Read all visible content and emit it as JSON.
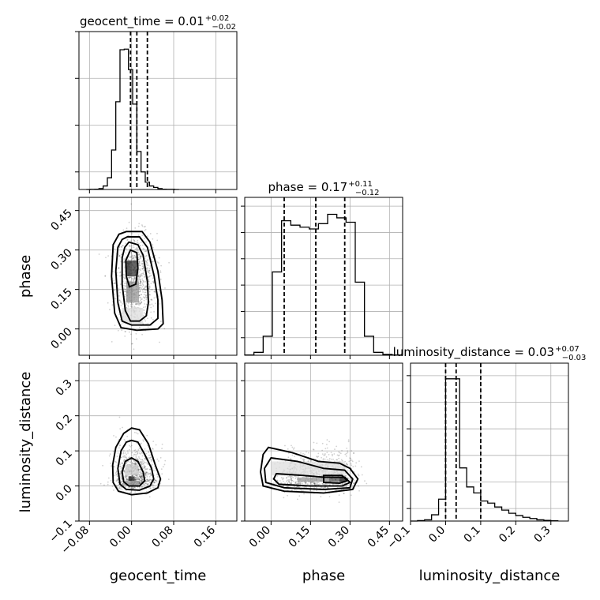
{
  "chart_data": {
    "type": "corner",
    "parameters": [
      {
        "name": "geocent_time",
        "axis_label": "geocent_time",
        "range": [
          -0.1,
          0.2
        ],
        "ticks": [
          -0.08,
          0.0,
          0.08,
          0.16
        ],
        "tick_labels": [
          "−0.08",
          "0.00",
          "0.08",
          "0.16"
        ],
        "median": 0.01,
        "quantiles": [
          -0.002,
          0.01,
          0.03
        ],
        "title": {
          "main": "geocent_time = 0.01",
          "sup": "+0.02",
          "sub": "−0.02"
        },
        "hist": {
          "bins": [
            -0.086,
            -0.078,
            -0.07,
            -0.062,
            -0.054,
            -0.046,
            -0.038,
            -0.03,
            -0.022,
            -0.014,
            -0.006,
            0.002,
            0.01,
            0.018,
            0.026,
            0.034,
            0.042,
            0.05,
            0.058,
            0.066,
            0.074,
            0.082,
            0.09
          ],
          "counts": [
            0,
            0.5,
            1,
            3,
            12,
            40,
            135,
            300,
            478,
            480,
            410,
            292,
            130,
            60,
            25,
            12,
            7,
            3,
            1,
            0.5,
            0.5,
            0
          ],
          "ymax": 540,
          "gridlines": [
            60,
            220,
            380,
            540
          ]
        }
      },
      {
        "name": "phase",
        "axis_label": "phase",
        "range": [
          -0.1,
          0.5
        ],
        "ticks": [
          0.0,
          0.15,
          0.3,
          0.45
        ],
        "tick_labels": [
          "0.00",
          "0.15",
          "0.30",
          "0.45"
        ],
        "median": 0.17,
        "quantiles": [
          0.05,
          0.17,
          0.28
        ],
        "title": {
          "main": "phase = 0.17",
          "sup": "+0.11",
          "sub": "−0.12"
        },
        "hist": {
          "bins": [
            -0.1,
            -0.065,
            -0.03,
            0.005,
            0.04,
            0.075,
            0.11,
            0.145,
            0.18,
            0.215,
            0.25,
            0.285,
            0.32,
            0.355,
            0.39,
            0.425,
            0.46,
            0.495
          ],
          "counts": [
            1,
            10,
            65,
            285,
            460,
            445,
            438,
            432,
            450,
            482,
            470,
            455,
            250,
            65,
            10,
            3,
            1
          ],
          "ymax": 540,
          "gridlines": [
            60,
            150,
            240,
            330,
            420,
            510
          ]
        }
      },
      {
        "name": "luminosity_distance",
        "axis_label": "luminosity_distance",
        "range": [
          -0.1,
          0.35
        ],
        "ticks": [
          -0.1,
          0.0,
          0.1,
          0.2,
          0.3
        ],
        "tick_labels": [
          "−0.1",
          "0.0",
          "0.1",
          "0.2",
          "0.3"
        ],
        "median": 0.03,
        "quantiles": [
          0.0,
          0.03,
          0.1
        ],
        "title": {
          "main": "luminosity_distance = 0.03",
          "sup": "+0.07",
          "sub": "−0.03"
        },
        "hist": {
          "bins": [
            -0.1,
            -0.08,
            -0.06,
            -0.04,
            -0.02,
            0.0,
            0.02,
            0.04,
            0.06,
            0.08,
            0.1,
            0.12,
            0.14,
            0.16,
            0.18,
            0.2,
            0.22,
            0.24,
            0.26,
            0.28,
            0.3,
            0.32
          ],
          "counts": [
            0,
            3,
            8,
            40,
            140,
            910,
            910,
            340,
            218,
            180,
            128,
            115,
            90,
            70,
            50,
            35,
            24,
            16,
            8,
            4,
            2
          ],
          "ymax": 1010,
          "gridlines": [
            80,
            250,
            420,
            590,
            760,
            930
          ]
        }
      }
    ],
    "scatter_panels": [
      {
        "x": "geocent_time",
        "y": "phase",
        "contours": [
          [
            [
              -0.01,
              0.37
            ],
            [
              0.02,
              0.37
            ],
            [
              0.035,
              0.33
            ],
            [
              0.05,
              0.22
            ],
            [
              0.058,
              0.11
            ],
            [
              0.06,
              0.02
            ],
            [
              0.05,
              0.0
            ],
            [
              0.01,
              -0.005
            ],
            [
              -0.02,
              0.005
            ],
            [
              -0.032,
              0.06
            ],
            [
              -0.038,
              0.2
            ],
            [
              -0.035,
              0.32
            ],
            [
              -0.024,
              0.36
            ]
          ],
          [
            [
              -0.008,
              0.35
            ],
            [
              0.015,
              0.35
            ],
            [
              0.03,
              0.31
            ],
            [
              0.043,
              0.2
            ],
            [
              0.05,
              0.11
            ],
            [
              0.05,
              0.04
            ],
            [
              0.035,
              0.015
            ],
            [
              0.0,
              0.015
            ],
            [
              -0.018,
              0.03
            ],
            [
              -0.026,
              0.1
            ],
            [
              -0.03,
              0.22
            ],
            [
              -0.026,
              0.31
            ],
            [
              -0.018,
              0.34
            ]
          ],
          [
            [
              -0.005,
              0.33
            ],
            [
              0.012,
              0.32
            ],
            [
              0.022,
              0.28
            ],
            [
              0.03,
              0.18
            ],
            [
              0.032,
              0.1
            ],
            [
              0.028,
              0.05
            ],
            [
              0.015,
              0.03
            ],
            [
              -0.002,
              0.03
            ],
            [
              -0.012,
              0.07
            ],
            [
              -0.018,
              0.17
            ],
            [
              -0.018,
              0.27
            ],
            [
              -0.013,
              0.31
            ]
          ],
          [
            [
              -0.002,
              0.3
            ],
            [
              0.01,
              0.29
            ],
            [
              0.012,
              0.23
            ],
            [
              0.008,
              0.17
            ],
            [
              -0.004,
              0.16
            ],
            [
              -0.01,
              0.2
            ],
            [
              -0.011,
              0.26
            ]
          ]
        ]
      },
      {
        "x": "geocent_time",
        "y": "luminosity_distance",
        "contours": [
          [
            [
              0.0,
              0.165
            ],
            [
              0.015,
              0.16
            ],
            [
              0.032,
              0.12
            ],
            [
              0.045,
              0.06
            ],
            [
              0.055,
              0.02
            ],
            [
              0.05,
              -0.005
            ],
            [
              0.03,
              -0.02
            ],
            [
              0.0,
              -0.025
            ],
            [
              -0.025,
              -0.015
            ],
            [
              -0.035,
              0.01
            ],
            [
              -0.036,
              0.06
            ],
            [
              -0.03,
              0.11
            ],
            [
              -0.015,
              0.15
            ]
          ],
          [
            [
              0.0,
              0.13
            ],
            [
              0.012,
              0.125
            ],
            [
              0.025,
              0.09
            ],
            [
              0.038,
              0.05
            ],
            [
              0.042,
              0.02
            ],
            [
              0.035,
              0.0
            ],
            [
              0.015,
              -0.012
            ],
            [
              -0.01,
              -0.01
            ],
            [
              -0.022,
              0.005
            ],
            [
              -0.026,
              0.05
            ],
            [
              -0.02,
              0.1
            ],
            [
              -0.01,
              0.125
            ]
          ],
          [
            [
              0.0,
              0.08
            ],
            [
              0.012,
              0.07
            ],
            [
              0.022,
              0.04
            ],
            [
              0.025,
              0.015
            ],
            [
              0.015,
              0.0
            ],
            [
              -0.005,
              0.0
            ],
            [
              -0.015,
              0.012
            ],
            [
              -0.018,
              0.04
            ],
            [
              -0.012,
              0.07
            ]
          ]
        ]
      },
      {
        "x": "phase",
        "y": "luminosity_distance",
        "contours": [
          [
            [
              -0.01,
              0.11
            ],
            [
              0.08,
              0.095
            ],
            [
              0.18,
              0.07
            ],
            [
              0.26,
              0.065
            ],
            [
              0.3,
              0.05
            ],
            [
              0.33,
              0.02
            ],
            [
              0.31,
              -0.01
            ],
            [
              0.2,
              -0.02
            ],
            [
              0.05,
              -0.015
            ],
            [
              -0.03,
              0.0
            ],
            [
              -0.04,
              0.04
            ],
            [
              -0.03,
              0.09
            ]
          ],
          [
            [
              0.0,
              0.08
            ],
            [
              0.1,
              0.07
            ],
            [
              0.2,
              0.05
            ],
            [
              0.28,
              0.045
            ],
            [
              0.31,
              0.02
            ],
            [
              0.3,
              -0.005
            ],
            [
              0.2,
              -0.01
            ],
            [
              0.05,
              -0.005
            ],
            [
              -0.02,
              0.01
            ],
            [
              -0.025,
              0.05
            ]
          ],
          [
            [
              0.02,
              0.035
            ],
            [
              0.12,
              0.03
            ],
            [
              0.2,
              0.025
            ],
            [
              0.28,
              0.025
            ],
            [
              0.3,
              0.01
            ],
            [
              0.27,
              0.0
            ],
            [
              0.15,
              0.0
            ],
            [
              0.03,
              0.005
            ],
            [
              0.01,
              0.02
            ]
          ],
          [
            [
              0.2,
              0.03
            ],
            [
              0.27,
              0.03
            ],
            [
              0.29,
              0.015
            ],
            [
              0.26,
              0.008
            ],
            [
              0.2,
              0.01
            ]
          ]
        ]
      }
    ],
    "grid": true
  }
}
